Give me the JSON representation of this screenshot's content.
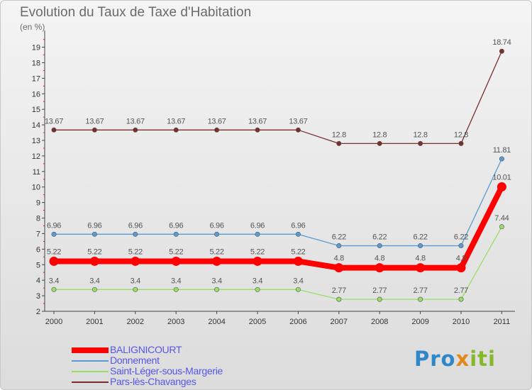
{
  "title": "Evolution du Taux de Taxe d'Habitation",
  "subtitle": "(en %)",
  "logo": "Proxiti",
  "chart_data": {
    "type": "line",
    "title": "Evolution du Taux de Taxe d'Habitation",
    "subtitle": "(en %)",
    "xlabel": "",
    "ylabel": "",
    "x": [
      "2000",
      "2001",
      "2002",
      "2003",
      "2004",
      "2005",
      "2006",
      "2007",
      "2008",
      "2009",
      "2010",
      "2011"
    ],
    "yticks": [
      "2",
      "3",
      "4",
      "5",
      "6",
      "7",
      "8",
      "9",
      "10",
      "11",
      "12",
      "13",
      "14",
      "15",
      "16",
      "17",
      "18",
      "19"
    ],
    "ylim": [
      2,
      19.8
    ],
    "grid": false,
    "legend_position": "bottom-left",
    "series": [
      {
        "name": "BALIGNICOURT",
        "color": "#ff0000",
        "values": [
          5.22,
          5.22,
          5.22,
          5.22,
          5.22,
          5.22,
          5.22,
          4.8,
          4.8,
          4.8,
          4.8,
          10.01
        ],
        "labels": [
          "5.22",
          "5.22",
          "5.22",
          "5.22",
          "5.22",
          "5.22",
          "5.22",
          "4.8",
          "4.8",
          "4.8",
          "4.8",
          "10.01"
        ]
      },
      {
        "name": "Donnement",
        "color": "#5b9bd5",
        "values": [
          6.96,
          6.96,
          6.96,
          6.96,
          6.96,
          6.96,
          6.96,
          6.22,
          6.22,
          6.22,
          6.22,
          11.81
        ],
        "labels": [
          "6.96",
          "6.96",
          "6.96",
          "6.96",
          "6.96",
          "6.96",
          "6.96",
          "6.22",
          "6.22",
          "6.22",
          "6.22",
          "11.81"
        ]
      },
      {
        "name": "Saint-Léger-sous-Margerie",
        "color": "#99dd66",
        "values": [
          3.4,
          3.4,
          3.4,
          3.4,
          3.4,
          3.4,
          3.4,
          2.77,
          2.77,
          2.77,
          2.77,
          7.44
        ],
        "labels": [
          "3.4",
          "3.4",
          "3.4",
          "3.4",
          "3.4",
          "3.4",
          "3.4",
          "2.77",
          "2.77",
          "2.77",
          "2.77",
          "7.44"
        ]
      },
      {
        "name": "Pars-lès-Chavanges",
        "color": "#7a2e2e",
        "values": [
          13.67,
          13.67,
          13.67,
          13.67,
          13.67,
          13.67,
          13.67,
          12.8,
          12.8,
          12.8,
          12.8,
          18.74
        ],
        "labels": [
          "13.67",
          "13.67",
          "13.67",
          "13.67",
          "13.67",
          "13.67",
          "13.67",
          "12.8",
          "12.8",
          "12.8",
          "12.8",
          "18.74"
        ]
      }
    ]
  }
}
